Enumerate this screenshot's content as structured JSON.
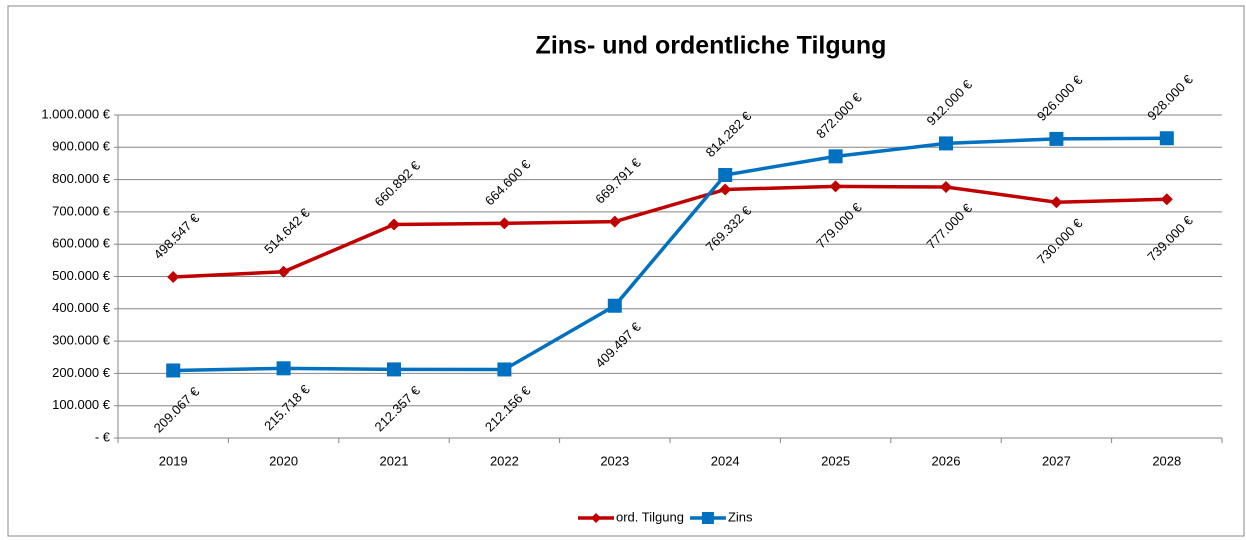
{
  "chart_data": {
    "type": "line",
    "title": "Zins- und ordentliche Tilgung",
    "categories": [
      "2019",
      "2020",
      "2021",
      "2022",
      "2023",
      "2024",
      "2025",
      "2026",
      "2027",
      "2028"
    ],
    "series": [
      {
        "name": "ord. Tilgung",
        "color": "#c00000",
        "marker": "diamond",
        "values": [
          498547,
          514642,
          660892,
          664600,
          669791,
          769332,
          779000,
          777000,
          730000,
          739000
        ],
        "value_labels": [
          "498.547 €",
          "514.642 €",
          "660.892 €",
          "664.600 €",
          "669.791 €",
          "769.332 €",
          "779.000 €",
          "777.000 €",
          "730.000 €",
          "739.000 €"
        ]
      },
      {
        "name": "Zins",
        "color": "#0070c0",
        "marker": "square",
        "values": [
          209067,
          215718,
          212357,
          212156,
          409497,
          814282,
          872000,
          912000,
          926000,
          928000
        ],
        "value_labels": [
          "209.067 €",
          "215.718 €",
          "212.357 €",
          "212.156 €",
          "409.497 €",
          "814.282 €",
          "872.000 €",
          "912.000 €",
          "926.000 €",
          "928.000 €"
        ]
      }
    ],
    "ylim": [
      0,
      1000000
    ],
    "yticks": [
      {
        "value": 0,
        "label": "-  €"
      },
      {
        "value": 100000,
        "label": "100.000 €"
      },
      {
        "value": 200000,
        "label": "200.000 €"
      },
      {
        "value": 300000,
        "label": "300.000 €"
      },
      {
        "value": 400000,
        "label": "400.000 €"
      },
      {
        "value": 500000,
        "label": "500.000 €"
      },
      {
        "value": 600000,
        "label": "600.000 €"
      },
      {
        "value": 700000,
        "label": "700.000 €"
      },
      {
        "value": 800000,
        "label": "800.000 €"
      },
      {
        "value": 900000,
        "label": "900.000 €"
      },
      {
        "value": 1000000,
        "label": "1.000.000 €"
      }
    ],
    "grid": true,
    "legend": "bottom"
  }
}
